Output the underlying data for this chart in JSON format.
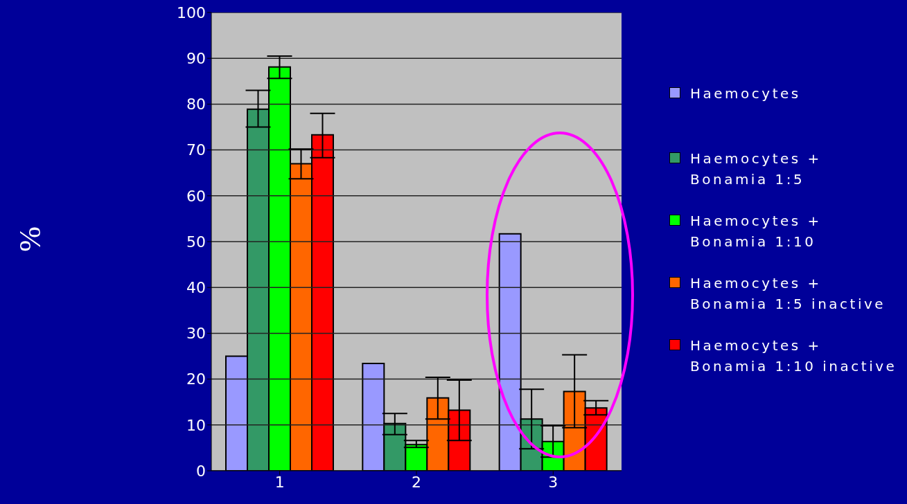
{
  "chart_data": {
    "type": "bar",
    "ylabel": "%",
    "categories": [
      "1",
      "2",
      "3"
    ],
    "series": [
      {
        "name": "Haemocytes",
        "color": "#9999ff",
        "values": [
          25,
          23.4,
          51.7
        ]
      },
      {
        "name": "Haemocytes + Bonamia 1:5",
        "color": "#339966",
        "values": [
          78.9,
          10.3,
          11.3
        ],
        "errors": [
          [
            75,
            83
          ],
          [
            7.9,
            12.5
          ],
          [
            4.8,
            17.8
          ]
        ]
      },
      {
        "name": "Haemocytes + Bonamia 1:10",
        "color": "#00ff00",
        "values": [
          88.1,
          5.7,
          6.4
        ],
        "errors": [
          [
            85.6,
            90.5
          ],
          [
            5.1,
            6.6
          ],
          [
            3,
            9.8
          ]
        ]
      },
      {
        "name": "Haemocytes + Bonamia 1:5 inactive",
        "color": "#ff6600",
        "values": [
          67,
          15.9,
          17.3
        ],
        "errors": [
          [
            63.7,
            70.2
          ],
          [
            11.3,
            20.4
          ],
          [
            9.4,
            25.3
          ]
        ]
      },
      {
        "name": "Haemocytes + Bonamia 1:10 inactive",
        "color": "#ff0000",
        "values": [
          73.3,
          13.2,
          13.7
        ],
        "errors": [
          [
            68.3,
            78
          ],
          [
            6.6,
            19.8
          ],
          [
            12.2,
            15.3
          ]
        ]
      }
    ],
    "ylim": [
      0,
      100
    ],
    "yticks": [
      0,
      10,
      20,
      30,
      40,
      50,
      60,
      70,
      80,
      90,
      100
    ],
    "grid": "y",
    "legend": "right"
  }
}
